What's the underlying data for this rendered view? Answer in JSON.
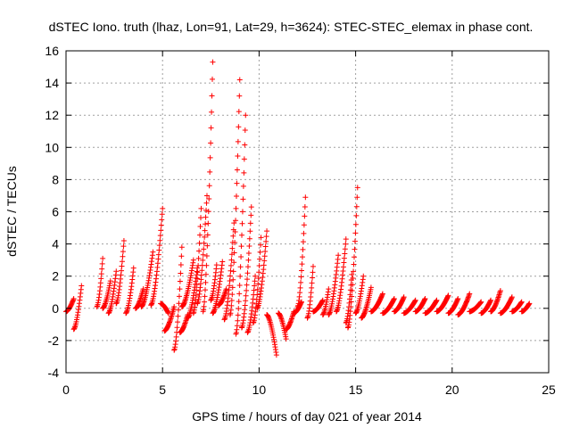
{
  "chart_data": {
    "type": "scatter",
    "title": "dSTEC Iono. truth (lhaz, Lon=91, Lat=29, h=3624): STEC-STEC_elemax in phase cont.",
    "xlabel": "GPS time / hours of day 021 of year 2014",
    "ylabel": "dSTEC  / TECUs",
    "xlim": [
      0,
      25
    ],
    "ylim": [
      -4,
      16
    ],
    "xticks": [
      0,
      5,
      10,
      15,
      20,
      25
    ],
    "yticks": [
      -4,
      -2,
      0,
      2,
      4,
      6,
      8,
      10,
      12,
      14,
      16
    ],
    "grid": true,
    "marker": "+",
    "color": "#ff0000",
    "segments": [
      {
        "start": 0.0,
        "end": 0.4,
        "v0": -0.2,
        "v1": 0.6
      },
      {
        "start": 0.4,
        "end": 0.8,
        "v0": -1.3,
        "v1": 1.4
      },
      {
        "start": 1.6,
        "end": 1.9,
        "v0": 0.1,
        "v1": 3.1
      },
      {
        "start": 1.9,
        "end": 2.3,
        "v0": 0.0,
        "v1": 1.7
      },
      {
        "start": 2.2,
        "end": 2.6,
        "v0": -0.3,
        "v1": 2.3
      },
      {
        "start": 2.6,
        "end": 3.0,
        "v0": 0.3,
        "v1": 4.2
      },
      {
        "start": 3.1,
        "end": 3.5,
        "v0": -0.3,
        "v1": 2.5
      },
      {
        "start": 3.6,
        "end": 4.0,
        "v0": 0.0,
        "v1": 1.2
      },
      {
        "start": 3.9,
        "end": 4.5,
        "v0": 0.1,
        "v1": 3.5
      },
      {
        "start": 4.4,
        "end": 5.0,
        "v0": 0.2,
        "v1": 6.2
      },
      {
        "start": 4.9,
        "end": 5.3,
        "v0": 0.3,
        "v1": -0.3
      },
      {
        "start": 5.1,
        "end": 5.6,
        "v0": -1.4,
        "v1": 0.1
      },
      {
        "start": 5.6,
        "end": 6.0,
        "v0": -2.6,
        "v1": 3.8
      },
      {
        "start": 5.9,
        "end": 6.3,
        "v0": -1.5,
        "v1": -0.4
      },
      {
        "start": 6.0,
        "end": 6.6,
        "v0": 0.1,
        "v1": 3.0
      },
      {
        "start": 6.3,
        "end": 6.8,
        "v0": -0.6,
        "v1": 2.5
      },
      {
        "start": 6.6,
        "end": 7.0,
        "v0": -0.3,
        "v1": 6.2
      },
      {
        "start": 6.8,
        "end": 7.3,
        "v0": 0.3,
        "v1": 7.0
      },
      {
        "start": 7.1,
        "end": 7.6,
        "v0": -0.2,
        "v1": 15.3
      },
      {
        "start": 7.5,
        "end": 7.8,
        "v0": 0.5,
        "v1": 2.7
      },
      {
        "start": 7.6,
        "end": 8.1,
        "v0": -0.3,
        "v1": 2.9
      },
      {
        "start": 7.9,
        "end": 8.3,
        "v0": 0.2,
        "v1": 1.2
      },
      {
        "start": 8.2,
        "end": 8.7,
        "v0": -0.7,
        "v1": 5.3
      },
      {
        "start": 8.5,
        "end": 9.0,
        "v0": -0.4,
        "v1": 14.2
      },
      {
        "start": 8.8,
        "end": 9.3,
        "v0": -1.6,
        "v1": 12.0
      },
      {
        "start": 9.1,
        "end": 9.6,
        "v0": -1.2,
        "v1": 6.3
      },
      {
        "start": 9.4,
        "end": 9.8,
        "v0": -1.5,
        "v1": 2.0
      },
      {
        "start": 9.7,
        "end": 10.1,
        "v0": -0.9,
        "v1": 4.4
      },
      {
        "start": 9.9,
        "end": 10.4,
        "v0": 0.0,
        "v1": 4.8
      },
      {
        "start": 10.4,
        "end": 10.9,
        "v0": -0.4,
        "v1": -2.9
      },
      {
        "start": 11.0,
        "end": 11.4,
        "v0": -0.3,
        "v1": -1.9
      },
      {
        "start": 11.4,
        "end": 11.8,
        "v0": -1.3,
        "v1": -0.2
      },
      {
        "start": 11.8,
        "end": 12.2,
        "v0": -0.3,
        "v1": 0.4
      },
      {
        "start": 12.0,
        "end": 12.4,
        "v0": 0.1,
        "v1": 6.9
      },
      {
        "start": 12.5,
        "end": 12.8,
        "v0": -0.6,
        "v1": 2.6
      },
      {
        "start": 12.8,
        "end": 13.3,
        "v0": -0.2,
        "v1": 0.5
      },
      {
        "start": 13.3,
        "end": 13.6,
        "v0": -0.4,
        "v1": 1.2
      },
      {
        "start": 13.6,
        "end": 14.1,
        "v0": -0.4,
        "v1": 3.3
      },
      {
        "start": 14.0,
        "end": 14.5,
        "v0": -0.2,
        "v1": 4.3
      },
      {
        "start": 14.5,
        "end": 14.8,
        "v0": -0.9,
        "v1": 2.1
      },
      {
        "start": 14.6,
        "end": 15.1,
        "v0": -1.2,
        "v1": 7.5
      },
      {
        "start": 15.0,
        "end": 15.4,
        "v0": -0.3,
        "v1": 2.0
      },
      {
        "start": 15.3,
        "end": 15.8,
        "v0": -0.6,
        "v1": 1.3
      },
      {
        "start": 15.8,
        "end": 16.4,
        "v0": -0.2,
        "v1": 0.9
      },
      {
        "start": 16.4,
        "end": 17.0,
        "v0": -0.3,
        "v1": 0.6
      },
      {
        "start": 17.0,
        "end": 17.5,
        "v0": -0.2,
        "v1": 0.7
      },
      {
        "start": 17.5,
        "end": 18.1,
        "v0": -0.3,
        "v1": 0.5
      },
      {
        "start": 18.1,
        "end": 18.6,
        "v0": -0.2,
        "v1": 0.6
      },
      {
        "start": 18.6,
        "end": 19.2,
        "v0": -0.3,
        "v1": 0.5
      },
      {
        "start": 19.2,
        "end": 19.8,
        "v0": -0.2,
        "v1": 0.8
      },
      {
        "start": 19.8,
        "end": 20.3,
        "v0": -0.3,
        "v1": 0.6
      },
      {
        "start": 20.3,
        "end": 20.9,
        "v0": -0.4,
        "v1": 0.9
      },
      {
        "start": 20.9,
        "end": 21.5,
        "v0": -0.2,
        "v1": 0.4
      },
      {
        "start": 21.5,
        "end": 22.0,
        "v0": -0.3,
        "v1": 0.5
      },
      {
        "start": 22.0,
        "end": 22.5,
        "v0": -0.2,
        "v1": 1.1
      },
      {
        "start": 22.5,
        "end": 23.1,
        "v0": -0.3,
        "v1": 0.7
      },
      {
        "start": 23.1,
        "end": 23.6,
        "v0": -0.2,
        "v1": 0.4
      },
      {
        "start": 23.6,
        "end": 24.0,
        "v0": -0.2,
        "v1": 0.3
      }
    ]
  }
}
